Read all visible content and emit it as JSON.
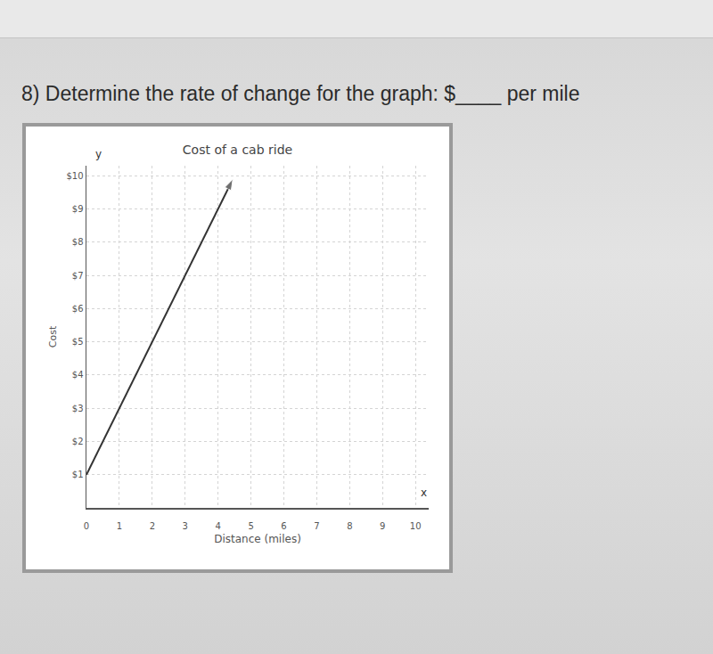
{
  "question": "8) Determine the rate of change for the graph: $____ per mile",
  "chart_data": {
    "type": "line",
    "title": "Cost of a cab ride",
    "x_label": "Distance (miles)",
    "y_label": "Cost",
    "annotations": [
      "y",
      "x"
    ],
    "series": [
      {
        "name": "Cost",
        "color": "#333333",
        "marker": "arrow",
        "line_style": "solid",
        "x": [
          0,
          4.45
        ],
        "values": [
          1,
          9.9
        ]
      }
    ],
    "xlim": [
      0,
      10.4
    ],
    "ylim": [
      0,
      10.3
    ],
    "xticks": [
      0,
      1,
      2,
      3,
      4,
      5,
      6,
      7,
      8,
      9,
      10
    ],
    "yticks": [
      {
        "value": 1,
        "label": "$1"
      },
      {
        "value": 2,
        "label": "$2"
      },
      {
        "value": 3,
        "label": "$3"
      },
      {
        "value": 4,
        "label": "$4"
      },
      {
        "value": 5,
        "label": "$5"
      },
      {
        "value": 6,
        "label": "$6"
      },
      {
        "value": 7,
        "label": "$7"
      },
      {
        "value": 8,
        "label": "$8"
      },
      {
        "value": 9,
        "label": "$9"
      },
      {
        "value": 10,
        "label": "$10"
      }
    ],
    "grid": true
  }
}
